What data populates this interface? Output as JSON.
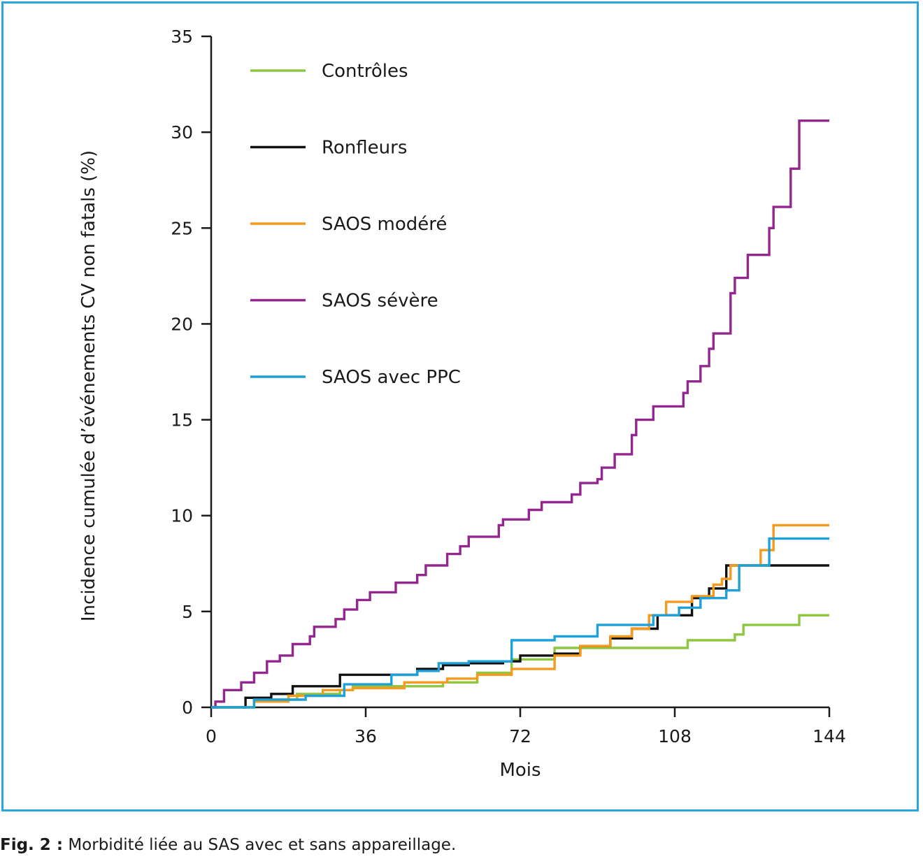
{
  "caption": {
    "prefix": "Fig. 2 :",
    "text": " Morbidité liée au SAS avec et sans appareillage."
  },
  "chart_data": {
    "type": "line",
    "step": true,
    "title": "",
    "xlabel": "Mois",
    "ylabel": "Incidence cumulée d’événements CV non fatals (%)",
    "xlim": [
      0,
      144
    ],
    "ylim": [
      0,
      35
    ],
    "xticks": [
      0,
      36,
      72,
      108,
      144
    ],
    "yticks": [
      0,
      5,
      10,
      15,
      20,
      25,
      30,
      35
    ],
    "legend_position": "top-left",
    "series": [
      {
        "name": "Contrôles",
        "color": "#8dc63f",
        "points": [
          [
            0,
            0
          ],
          [
            10,
            0
          ],
          [
            10,
            0.4
          ],
          [
            20,
            0.4
          ],
          [
            20,
            0.7
          ],
          [
            30,
            0.7
          ],
          [
            30,
            0.9
          ],
          [
            33,
            0.9
          ],
          [
            33,
            1.1
          ],
          [
            54,
            1.1
          ],
          [
            54,
            1.3
          ],
          [
            62,
            1.3
          ],
          [
            62,
            1.8
          ],
          [
            70,
            1.8
          ],
          [
            70,
            2.5
          ],
          [
            80,
            2.5
          ],
          [
            80,
            3.1
          ],
          [
            111,
            3.1
          ],
          [
            111,
            3.5
          ],
          [
            122,
            3.5
          ],
          [
            122,
            3.8
          ],
          [
            124,
            3.8
          ],
          [
            124,
            4.3
          ],
          [
            137,
            4.3
          ],
          [
            137,
            4.8
          ],
          [
            144,
            4.8
          ]
        ]
      },
      {
        "name": "Ronfleurs",
        "color": "#111111",
        "points": [
          [
            0,
            0
          ],
          [
            8,
            0
          ],
          [
            8,
            0.5
          ],
          [
            14,
            0.5
          ],
          [
            14,
            0.7
          ],
          [
            19,
            0.7
          ],
          [
            19,
            1.1
          ],
          [
            30,
            1.1
          ],
          [
            30,
            1.7
          ],
          [
            42,
            1.7
          ],
          [
            48,
            1.7
          ],
          [
            48,
            2.0
          ],
          [
            54,
            2.0
          ],
          [
            54,
            2.2
          ],
          [
            60,
            2.2
          ],
          [
            60,
            2.3
          ],
          [
            68,
            2.3
          ],
          [
            68,
            2.4
          ],
          [
            72,
            2.4
          ],
          [
            72,
            2.7
          ],
          [
            80,
            2.7
          ],
          [
            80,
            2.8
          ],
          [
            86,
            2.8
          ],
          [
            86,
            3.2
          ],
          [
            93,
            3.2
          ],
          [
            93,
            3.6
          ],
          [
            98,
            3.6
          ],
          [
            98,
            4.1
          ],
          [
            104,
            4.1
          ],
          [
            104,
            4.8
          ],
          [
            112,
            4.8
          ],
          [
            112,
            5.7
          ],
          [
            116,
            5.7
          ],
          [
            116,
            6.2
          ],
          [
            120,
            6.2
          ],
          [
            120,
            7.4
          ],
          [
            144,
            7.4
          ]
        ]
      },
      {
        "name": "SAOS modéré",
        "color": "#f39a1f",
        "points": [
          [
            0,
            0
          ],
          [
            10,
            0
          ],
          [
            10,
            0.3
          ],
          [
            18,
            0.3
          ],
          [
            18,
            0.6
          ],
          [
            26,
            0.6
          ],
          [
            26,
            0.9
          ],
          [
            33,
            0.9
          ],
          [
            33,
            1.0
          ],
          [
            45,
            1.0
          ],
          [
            45,
            1.3
          ],
          [
            55,
            1.3
          ],
          [
            55,
            1.5
          ],
          [
            62,
            1.5
          ],
          [
            62,
            1.7
          ],
          [
            70,
            1.7
          ],
          [
            70,
            2.0
          ],
          [
            80,
            2.0
          ],
          [
            80,
            2.7
          ],
          [
            86,
            2.7
          ],
          [
            86,
            3.2
          ],
          [
            93,
            3.2
          ],
          [
            93,
            3.7
          ],
          [
            98,
            3.7
          ],
          [
            98,
            4.1
          ],
          [
            102,
            4.1
          ],
          [
            102,
            4.8
          ],
          [
            106,
            4.8
          ],
          [
            106,
            5.5
          ],
          [
            112,
            5.5
          ],
          [
            112,
            5.8
          ],
          [
            117,
            5.8
          ],
          [
            117,
            6.4
          ],
          [
            119,
            6.4
          ],
          [
            119,
            6.7
          ],
          [
            121,
            6.7
          ],
          [
            121,
            7.4
          ],
          [
            128,
            7.4
          ],
          [
            128,
            8.2
          ],
          [
            131,
            8.2
          ],
          [
            131,
            9.5
          ],
          [
            144,
            9.5
          ]
        ]
      },
      {
        "name": "SAOS sévère",
        "color": "#93278f",
        "points": [
          [
            0,
            0
          ],
          [
            1,
            0
          ],
          [
            1,
            0.3
          ],
          [
            3,
            0.3
          ],
          [
            3,
            0.9
          ],
          [
            7,
            0.9
          ],
          [
            7,
            1.3
          ],
          [
            10,
            1.3
          ],
          [
            10,
            1.8
          ],
          [
            13,
            1.8
          ],
          [
            13,
            2.4
          ],
          [
            16,
            2.4
          ],
          [
            16,
            2.7
          ],
          [
            19,
            2.7
          ],
          [
            19,
            3.3
          ],
          [
            23,
            3.3
          ],
          [
            23,
            3.7
          ],
          [
            24,
            3.7
          ],
          [
            24,
            4.2
          ],
          [
            29,
            4.2
          ],
          [
            29,
            4.6
          ],
          [
            31,
            4.6
          ],
          [
            31,
            5.1
          ],
          [
            34,
            5.1
          ],
          [
            34,
            5.6
          ],
          [
            37,
            5.6
          ],
          [
            37,
            6.0
          ],
          [
            43,
            6.0
          ],
          [
            43,
            6.5
          ],
          [
            48,
            6.5
          ],
          [
            48,
            6.9
          ],
          [
            50,
            6.9
          ],
          [
            50,
            7.4
          ],
          [
            55,
            7.4
          ],
          [
            55,
            8.0
          ],
          [
            58,
            8.0
          ],
          [
            58,
            8.4
          ],
          [
            60,
            8.4
          ],
          [
            60,
            8.9
          ],
          [
            67,
            8.9
          ],
          [
            67,
            9.5
          ],
          [
            68,
            9.5
          ],
          [
            68,
            9.8
          ],
          [
            74,
            9.8
          ],
          [
            74,
            10.3
          ],
          [
            77,
            10.3
          ],
          [
            77,
            10.7
          ],
          [
            84,
            10.7
          ],
          [
            84,
            11.1
          ],
          [
            86,
            11.1
          ],
          [
            86,
            11.7
          ],
          [
            90,
            11.7
          ],
          [
            90,
            11.9
          ],
          [
            91,
            11.9
          ],
          [
            91,
            12.5
          ],
          [
            94,
            12.5
          ],
          [
            94,
            13.2
          ],
          [
            98,
            13.2
          ],
          [
            98,
            14.2
          ],
          [
            99,
            14.2
          ],
          [
            99,
            15.0
          ],
          [
            103,
            15.0
          ],
          [
            103,
            15.7
          ],
          [
            110,
            15.7
          ],
          [
            110,
            16.4
          ],
          [
            111,
            16.4
          ],
          [
            111,
            17.0
          ],
          [
            114,
            17.0
          ],
          [
            114,
            17.8
          ],
          [
            116,
            17.8
          ],
          [
            116,
            18.7
          ],
          [
            117,
            18.7
          ],
          [
            117,
            19.5
          ],
          [
            121,
            19.5
          ],
          [
            121,
            21.6
          ],
          [
            122,
            21.6
          ],
          [
            122,
            22.4
          ],
          [
            125,
            22.4
          ],
          [
            125,
            23.6
          ],
          [
            130,
            23.6
          ],
          [
            130,
            25.0
          ],
          [
            131,
            25.0
          ],
          [
            131,
            26.1
          ],
          [
            135,
            26.1
          ],
          [
            135,
            28.1
          ],
          [
            137,
            28.1
          ],
          [
            137,
            30.6
          ],
          [
            144,
            30.6
          ]
        ]
      },
      {
        "name": "SAOS avec PPC",
        "color": "#1ea1d9",
        "points": [
          [
            0,
            0
          ],
          [
            10,
            0
          ],
          [
            10,
            0.4
          ],
          [
            22,
            0.4
          ],
          [
            22,
            0.6
          ],
          [
            31,
            0.6
          ],
          [
            31,
            1.2
          ],
          [
            42,
            1.2
          ],
          [
            42,
            1.7
          ],
          [
            48,
            1.7
          ],
          [
            48,
            1.9
          ],
          [
            53,
            1.9
          ],
          [
            53,
            2.3
          ],
          [
            60,
            2.3
          ],
          [
            60,
            2.4
          ],
          [
            66,
            2.4
          ],
          [
            66,
            2.4
          ],
          [
            70,
            2.4
          ],
          [
            70,
            3.5
          ],
          [
            80,
            3.5
          ],
          [
            80,
            3.7
          ],
          [
            90,
            3.7
          ],
          [
            90,
            4.3
          ],
          [
            103,
            4.3
          ],
          [
            103,
            4.8
          ],
          [
            109,
            4.8
          ],
          [
            109,
            5.2
          ],
          [
            114,
            5.2
          ],
          [
            114,
            5.7
          ],
          [
            120,
            5.7
          ],
          [
            120,
            6.1
          ],
          [
            123,
            6.1
          ],
          [
            123,
            7.4
          ],
          [
            130,
            7.4
          ],
          [
            130,
            8.8
          ],
          [
            144,
            8.8
          ]
        ]
      }
    ]
  }
}
